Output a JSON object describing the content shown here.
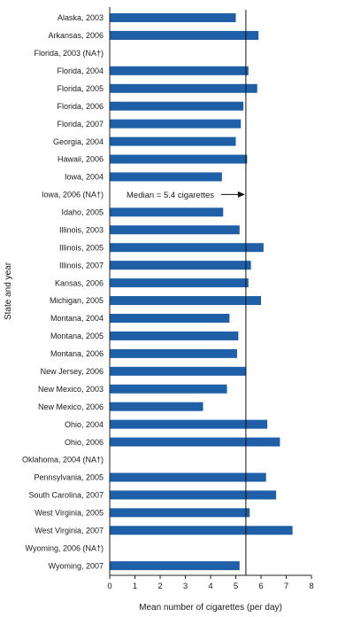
{
  "chart_data": {
    "type": "bar",
    "orientation": "horizontal",
    "categories": [
      "Alaska, 2003",
      "Arkansas, 2006",
      "Florida, 2003 (NA†)",
      "Florida, 2004",
      "Florida, 2005",
      "Florida, 2006",
      "Florida, 2007",
      "Georgia, 2004",
      "Hawaii, 2006",
      "Iowa, 2004",
      "Iowa, 2006 (NA†)",
      "Idaho, 2005",
      "Illinois, 2003",
      "Illinois, 2005",
      "Illinois, 2007",
      "Kansas, 2006",
      "Michigan, 2005",
      "Montana, 2004",
      "Montana, 2005",
      "Montana, 2006",
      "New Jersey, 2006",
      "New Mexico, 2003",
      "New Mexico, 2006",
      "Ohio, 2004",
      "Ohio, 2006",
      "Oklahoma, 2004 (NA†)",
      "Pennsylvania, 2005",
      "South Carolina, 2007",
      "West Virginia, 2005",
      "West Virginia, 2007",
      "Wyoming, 2006 (NA†)",
      "Wyoming, 2007"
    ],
    "values": [
      5.0,
      5.9,
      null,
      5.5,
      5.85,
      5.3,
      5.2,
      5.0,
      5.45,
      4.45,
      null,
      4.5,
      5.15,
      6.1,
      5.6,
      5.5,
      6.0,
      4.75,
      5.1,
      5.05,
      5.4,
      4.65,
      3.7,
      6.25,
      6.75,
      null,
      6.2,
      6.6,
      5.55,
      7.25,
      null,
      5.15
    ],
    "xlabel": "Mean number of cigarettes (per day)",
    "ylabel": "State and year",
    "xlim": [
      0,
      8
    ],
    "xticks": [
      "0",
      "1",
      "2",
      "3",
      "4",
      "5",
      "6",
      "7",
      "8"
    ],
    "median": {
      "value": 5.4,
      "label": "Median = 5.4 cigarettes"
    },
    "bar_color": "#1f5fa8",
    "grid": false
  }
}
